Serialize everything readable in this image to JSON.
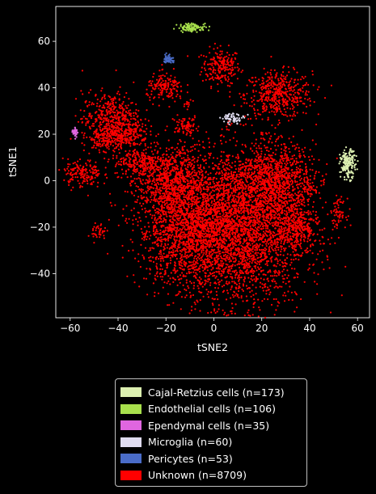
{
  "chart_data": {
    "type": "scatter",
    "xlabel": "tSNE2",
    "ylabel": "tSNE1",
    "xlim": [
      -66,
      65
    ],
    "ylim": [
      -59,
      75
    ],
    "xticks": [
      -60,
      -40,
      -20,
      0,
      20,
      40,
      60
    ],
    "yticks": [
      -40,
      -20,
      0,
      20,
      40,
      60
    ],
    "legend_position": "below plot",
    "series": [
      {
        "name": "Cajal-Retzius cells (n=173)",
        "color": "#dcefb0",
        "count": 173,
        "clusters": [
          {
            "cx": 56,
            "cy": 7,
            "sx": 1.6,
            "sy": 3.0
          }
        ]
      },
      {
        "name": "Endothelial cells (n=106)",
        "color": "#a8e04c",
        "count": 106,
        "clusters": [
          {
            "cx": -9,
            "cy": 66,
            "sx": 3.0,
            "sy": 0.9
          }
        ]
      },
      {
        "name": "Ependymal cells (n=35)",
        "color": "#e066e0",
        "count": 35,
        "clusters": [
          {
            "cx": -58,
            "cy": 21,
            "sx": 0.6,
            "sy": 1.0
          }
        ]
      },
      {
        "name": "Microglia (n=60)",
        "color": "#e0dcf0",
        "count": 60,
        "clusters": [
          {
            "cx": 8,
            "cy": 27,
            "sx": 2.5,
            "sy": 1.0
          }
        ]
      },
      {
        "name": "Pericytes (n=53)",
        "color": "#4a6cc8",
        "count": 53,
        "clusters": [
          {
            "cx": -19,
            "cy": 52.5,
            "sx": 1.0,
            "sy": 1.0
          }
        ]
      },
      {
        "name": "Unknown (n=8709)",
        "color": "#ff0000",
        "count": 8709,
        "clusters": [
          {
            "cx": 3,
            "cy": 49,
            "sx": 4,
            "sy": 4
          },
          {
            "cx": 27,
            "cy": 37,
            "sx": 7,
            "sy": 5
          },
          {
            "cx": 12,
            "cy": -20,
            "sx": 13,
            "sy": 17
          },
          {
            "cx": -10,
            "cy": -20,
            "sx": 11,
            "sy": 12
          },
          {
            "cx": 25,
            "cy": 0,
            "sx": 8,
            "sy": 8
          },
          {
            "cx": -18,
            "cy": 0,
            "sx": 7,
            "sy": 7
          },
          {
            "cx": -30,
            "cy": 8,
            "sx": 6,
            "sy": 3
          },
          {
            "cx": -43,
            "cy": 26,
            "sx": 6,
            "sy": 6
          },
          {
            "cx": -37,
            "cy": 20,
            "sx": 5,
            "sy": 3
          },
          {
            "cx": -55,
            "cy": 3,
            "sx": 4,
            "sy": 3
          },
          {
            "cx": -48,
            "cy": -22,
            "sx": 1.5,
            "sy": 2
          },
          {
            "cx": -20,
            "cy": 40,
            "sx": 4,
            "sy": 3
          },
          {
            "cx": -12,
            "cy": 24,
            "sx": 3,
            "sy": 2
          },
          {
            "cx": 52,
            "cy": -14,
            "sx": 1.6,
            "sy": 3
          },
          {
            "cx": 39,
            "cy": -3,
            "sx": 1.5,
            "sy": 2
          },
          {
            "cx": -11,
            "cy": 33,
            "sx": 1,
            "sy": 1
          },
          {
            "cx": -47,
            "cy": 17,
            "sx": 3,
            "sy": 2
          },
          {
            "cx": 35,
            "cy": -20,
            "sx": 4,
            "sy": 5
          }
        ]
      }
    ]
  }
}
